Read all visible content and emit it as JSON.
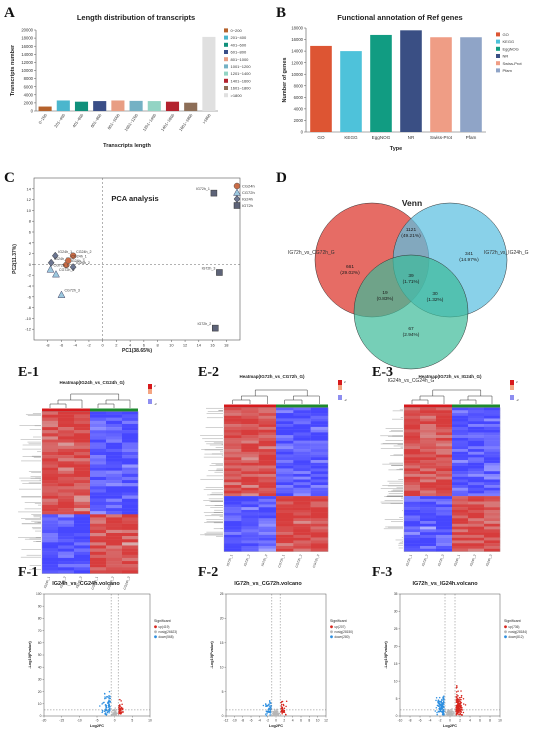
{
  "panels": {
    "A": {
      "label": "A",
      "title": "Length distribution of transcripts"
    },
    "B": {
      "label": "B",
      "title": "Functional annotation of Ref genes"
    },
    "C": {
      "label": "C",
      "title": "PCA analysis"
    },
    "D": {
      "label": "D",
      "title": "Venn"
    },
    "E1": {
      "label": "E-1",
      "title": "Heatmap(IG24h_vs_CG24h_G)"
    },
    "E2": {
      "label": "E-2",
      "title": "Heatmap(IG72h_vs_CG72h_G)"
    },
    "E3": {
      "label": "E-3",
      "title": "Heatmap(IG72h_vs_IG24h_G)"
    },
    "F1": {
      "label": "F-1",
      "title": "IG24h_vs_CG24h.volcano"
    },
    "F2": {
      "label": "F-2",
      "title": "IG72h_vs_CG72h.volcano"
    },
    "F3": {
      "label": "F-3",
      "title": "IG72h_vs_IG24h.volcano"
    }
  },
  "chart_data": [
    {
      "id": "A",
      "type": "bar",
      "title": "Length distribution of transcripts",
      "xlabel": "Transcripts length",
      "ylabel": "Transcripts number",
      "ylim": [
        0,
        20000
      ],
      "yticks": [
        0,
        2000,
        4000,
        6000,
        8000,
        10000,
        12000,
        14000,
        16000,
        18000,
        20000
      ],
      "categories": [
        "0~200",
        "201~400",
        "401~600",
        "601~800",
        "801~1000",
        "1001~1200",
        "1201~1400",
        "1401~1600",
        "1601~1800",
        ">1800"
      ],
      "values": [
        1100,
        2600,
        2300,
        2450,
        2600,
        2500,
        2450,
        2300,
        2050,
        18300
      ],
      "colors": [
        "#b5622c",
        "#4bb6cd",
        "#10907b",
        "#3a4e87",
        "#e89e84",
        "#74b1c4",
        "#93d4c4",
        "#b3222e",
        "#8d6e57",
        "#e0e0e0"
      ],
      "legend": [
        "0~200",
        "201~400",
        "401~600",
        "601~800",
        "801~1000",
        "1001~1200",
        "1201~1400",
        "1401~1600",
        "1601~1800",
        ">1800"
      ],
      "legend_position": "right"
    },
    {
      "id": "B",
      "type": "bar",
      "title": "Functional annotation of Ref genes",
      "xlabel": "Type",
      "ylabel": "Number of genes",
      "ylim": [
        0,
        18000
      ],
      "yticks": [
        0,
        2000,
        4000,
        6000,
        8000,
        10000,
        12000,
        14000,
        16000,
        18000
      ],
      "categories": [
        "GO",
        "KEGG",
        "EggNOG",
        "NR",
        "Swiss-Prot",
        "Pfam"
      ],
      "values": [
        14900,
        14000,
        16800,
        17600,
        16400,
        16400
      ],
      "colors": [
        "#dd5533",
        "#4ec2da",
        "#119c82",
        "#3a4f84",
        "#ef9d85",
        "#8fa4c7"
      ],
      "legend": [
        "GO",
        "KEGG",
        "EggNOG",
        "NR",
        "Swiss-Prot",
        "Pfam"
      ],
      "legend_position": "top-right"
    },
    {
      "id": "C",
      "type": "scatter",
      "title": "PCA analysis",
      "xlabel": "PC1(38.65%)",
      "ylabel": "PC2(11.37%)",
      "xlim": [
        -10,
        20
      ],
      "ylim": [
        -14,
        16
      ],
      "xticks": [
        -8,
        -6,
        -4,
        -2,
        0,
        2,
        4,
        6,
        8,
        10,
        12,
        14,
        16,
        18
      ],
      "yticks": [
        -12,
        -10,
        -8,
        -6,
        -4,
        -2,
        0,
        2,
        4,
        6,
        8,
        10,
        12,
        14
      ],
      "legend": [
        "CG24h",
        "CG72h",
        "IG24h",
        "IG72h"
      ],
      "legend_position": "top-right",
      "points": [
        {
          "label": "IG72h_1",
          "group": "IG72h",
          "x": 16.2,
          "y": 13.2
        },
        {
          "label": "IG72h_3",
          "group": "IG72h",
          "x": 17.0,
          "y": -1.5
        },
        {
          "label": "IG72h_2",
          "group": "IG72h",
          "x": 16.4,
          "y": -11.8
        },
        {
          "label": "IG24h_1",
          "group": "IG24h",
          "x": -6.9,
          "y": 1.6
        },
        {
          "label": "IG24h_3",
          "group": "IG24h",
          "x": -7.5,
          "y": 0.3
        },
        {
          "label": "IG24h_2",
          "group": "IG24h",
          "x": -4.3,
          "y": -0.5
        },
        {
          "label": "CG24h_2",
          "group": "CG24h",
          "x": -4.3,
          "y": 1.6
        },
        {
          "label": "CG24h_3",
          "group": "CG24h",
          "x": -5.3,
          "y": -0.1
        },
        {
          "label": "CG24h_1",
          "group": "CG24h",
          "x": -5.0,
          "y": 0.7
        },
        {
          "label": "CG72h_2",
          "group": "CG72h",
          "x": -6.8,
          "y": -1.8
        },
        {
          "label": "CG72h_1",
          "group": "CG72h",
          "x": -7.6,
          "y": -0.9
        },
        {
          "label": "CG72h_3",
          "group": "CG72h",
          "x": -6.0,
          "y": -5.6
        }
      ]
    },
    {
      "id": "D",
      "type": "venn",
      "title": "Venn",
      "sets": [
        "IG72h_vs_CG72h_G",
        "IG72h_vs_IG24h_G",
        "IG24h_vs_CG24h_G"
      ],
      "regions": [
        {
          "count": "661",
          "pct": "(29.02%)"
        },
        {
          "count": "1121",
          "pct": "(49.21%)"
        },
        {
          "count": "341",
          "pct": "(14.97%)"
        },
        {
          "count": "39",
          "pct": "(1.71%)"
        },
        {
          "count": "19",
          "pct": "(0.83%)"
        },
        {
          "count": "30",
          "pct": "(1.32%)"
        },
        {
          "count": "67",
          "pct": "(2.94%)"
        }
      ]
    },
    {
      "id": "E1",
      "type": "heatmap",
      "title": "Heatmap(IG24h_vs_CG24h_G)",
      "samples": [
        "IG24h_1",
        "IG24h_2",
        "IG24h_3",
        "CG24h_1",
        "CG24h_2",
        "CG24h_3"
      ],
      "scale": [
        -2,
        2
      ],
      "colors": {
        "high": "#d7191c",
        "mid": "#ffffff",
        "low": "#2b2bd6"
      }
    },
    {
      "id": "E2",
      "type": "heatmap",
      "title": "Heatmap(IG72h_vs_CG72h_G)",
      "samples": [
        "IG72h_1",
        "IG72h_2",
        "IG72h_3",
        "CG72h_1",
        "CG72h_2",
        "CG72h_3"
      ],
      "scale": [
        -2,
        2
      ],
      "colors": {
        "high": "#d7191c",
        "mid": "#ffffff",
        "low": "#2b2bd6"
      }
    },
    {
      "id": "E3",
      "type": "heatmap",
      "title": "Heatmap(IG72h_vs_IG24h_G)",
      "samples": [
        "IG72h_1",
        "IG72h_2",
        "IG72h_3",
        "IG24h_1",
        "IG24h_2",
        "IG24h_3"
      ],
      "scale": [
        -2,
        2
      ],
      "colors": {
        "high": "#d7191c",
        "mid": "#ffffff",
        "low": "#2b2bd6"
      }
    },
    {
      "id": "F1",
      "type": "scatter",
      "title": "IG24h_vs_CG24h.volcano",
      "xlabel": "Log2FC",
      "ylabel": "-Log10(Pvalue)",
      "xlim": [
        -20,
        10
      ],
      "ylim": [
        0,
        100
      ],
      "xticks": [
        -20,
        -15,
        -10,
        -5,
        0,
        5,
        10
      ],
      "yticks": [
        0,
        10,
        20,
        30,
        40,
        50,
        60,
        70,
        80,
        90,
        100
      ],
      "legend_title": "Significant",
      "legend": [
        {
          "name": "up(419)",
          "color": "#d7261e"
        },
        {
          "name": "nosig(26623)",
          "color": "#b7b7b7"
        },
        {
          "name": "down(568)",
          "color": "#2e8fe0"
        }
      ],
      "legend_position": "right"
    },
    {
      "id": "F2",
      "type": "scatter",
      "title": "IG72h_vs_CG72h.volcano",
      "xlabel": "Log2FC",
      "ylabel": "-Log10(Pvalue)",
      "xlim": [
        -12,
        12
      ],
      "ylim": [
        0,
        25
      ],
      "xticks": [
        -12,
        -10,
        -8,
        -6,
        -4,
        -2,
        0,
        2,
        4,
        6,
        8,
        10,
        12
      ],
      "yticks": [
        0,
        5,
        10,
        15,
        20,
        25
      ],
      "legend_title": "Significant",
      "legend": [
        {
          "name": "up(207)",
          "color": "#d7261e"
        },
        {
          "name": "nosig(28150)",
          "color": "#b7b7b7"
        },
        {
          "name": "down(280)",
          "color": "#2e8fe0"
        }
      ],
      "legend_position": "right"
    },
    {
      "id": "F3",
      "type": "scatter",
      "title": "IG72h_vs_IG24h.volcano",
      "xlabel": "Log2FC",
      "ylabel": "-Log10(Pvalue)",
      "xlim": [
        -10,
        10
      ],
      "ylim": [
        0,
        35
      ],
      "xticks": [
        -10,
        -8,
        -6,
        -4,
        -2,
        0,
        2,
        4,
        6,
        8,
        10
      ],
      "yticks": [
        0,
        5,
        10,
        15,
        20,
        25,
        30,
        35
      ],
      "legend_title": "Significant",
      "legend": [
        {
          "name": "up(736)",
          "color": "#d7261e"
        },
        {
          "name": "nosig(28184)",
          "color": "#b7b7b7"
        },
        {
          "name": "down(812)",
          "color": "#2e8fe0"
        }
      ],
      "legend_position": "right"
    }
  ]
}
